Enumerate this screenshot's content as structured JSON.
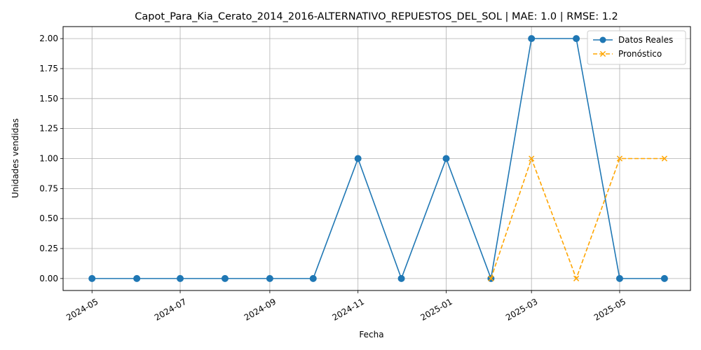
{
  "chart_data": {
    "type": "line",
    "title": "Capot_Para_Kia_Cerato_2014_2016-ALTERNATIVO_REPUESTOS_DEL_SOL | MAE: 1.0 | RMSE: 1.2",
    "xlabel": "Fecha",
    "ylabel": "Unidades vendidas",
    "xlim": [
      "2024-04-11",
      "2025-06-19"
    ],
    "ylim": [
      -0.1,
      2.1
    ],
    "grid": true,
    "legend_position": "top-right",
    "x_ticks": [
      {
        "date": "2024-05-01",
        "label": "2024-05"
      },
      {
        "date": "2024-07-01",
        "label": "2024-07"
      },
      {
        "date": "2024-09-01",
        "label": "2024-09"
      },
      {
        "date": "2024-11-01",
        "label": "2024-11"
      },
      {
        "date": "2025-01-01",
        "label": "2025-01"
      },
      {
        "date": "2025-03-01",
        "label": "2025-03"
      },
      {
        "date": "2025-05-01",
        "label": "2025-05"
      }
    ],
    "y_ticks": [
      {
        "value": 0.0,
        "label": "0.00"
      },
      {
        "value": 0.25,
        "label": "0.25"
      },
      {
        "value": 0.5,
        "label": "0.50"
      },
      {
        "value": 0.75,
        "label": "0.75"
      },
      {
        "value": 1.0,
        "label": "1.00"
      },
      {
        "value": 1.25,
        "label": "1.25"
      },
      {
        "value": 1.5,
        "label": "1.50"
      },
      {
        "value": 1.75,
        "label": "1.75"
      },
      {
        "value": 2.0,
        "label": "2.00"
      }
    ],
    "series": [
      {
        "name": "Datos Reales",
        "color": "#1f77b4",
        "line_style": "solid",
        "marker": "circle",
        "x": [
          "2024-05-01",
          "2024-06-01",
          "2024-07-01",
          "2024-08-01",
          "2024-09-01",
          "2024-10-01",
          "2024-11-01",
          "2024-12-01",
          "2025-01-01",
          "2025-02-01",
          "2025-03-01",
          "2025-04-01",
          "2025-05-01",
          "2025-06-01"
        ],
        "y": [
          0,
          0,
          0,
          0,
          0,
          0,
          1,
          0,
          1,
          0,
          2,
          2,
          0,
          0
        ]
      },
      {
        "name": "Pronóstico",
        "color": "#ffa500",
        "line_style": "dashed",
        "marker": "x",
        "x": [
          "2025-02-01",
          "2025-03-01",
          "2025-04-01",
          "2025-05-01",
          "2025-06-01"
        ],
        "y": [
          0,
          1,
          0,
          1,
          1
        ]
      }
    ]
  }
}
